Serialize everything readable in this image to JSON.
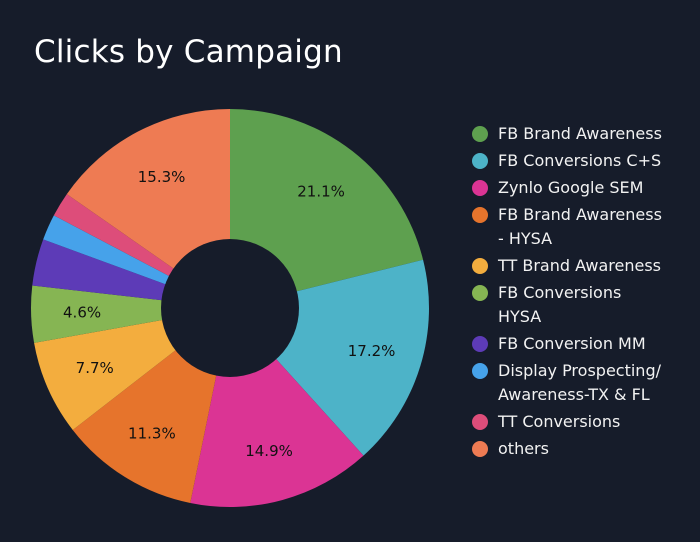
{
  "chart_data": {
    "type": "pie",
    "title": "Clicks by Campaign",
    "legend_position": "right",
    "donut": true,
    "categories": [
      "FB Brand Awareness",
      "FB Conversions C+S",
      "Zynlo Google SEM",
      "FB Brand Awareness - HYSA",
      "TT Brand Awareness",
      "FB Conversions HYSA",
      "FB Conversion MM",
      "Display Prospecting/ Awareness-TX & FL",
      "TT Conversions",
      "others"
    ],
    "legend_lines": [
      [
        "FB Brand Awareness"
      ],
      [
        "FB Conversions C+S"
      ],
      [
        "Zynlo Google SEM"
      ],
      [
        "FB Brand Awareness",
        "- HYSA"
      ],
      [
        "TT Brand Awareness"
      ],
      [
        "FB Conversions",
        "HYSA"
      ],
      [
        "FB Conversion MM"
      ],
      [
        "Display Prospecting/",
        "Awareness-TX & FL"
      ],
      [
        "TT Conversions"
      ],
      [
        "others"
      ]
    ],
    "values": [
      21.1,
      17.2,
      14.9,
      11.3,
      7.7,
      4.6,
      3.8,
      2.1,
      2.0,
      15.3
    ],
    "data_labels": [
      "21.1%",
      "17.2%",
      "14.9%",
      "11.3%",
      "7.7%",
      "4.6%",
      "",
      "",
      "",
      "15.3%"
    ],
    "colors": [
      "#5ea04f",
      "#4db3c8",
      "#db3494",
      "#e6742c",
      "#f3ad3e",
      "#86b553",
      "#5d3bb7",
      "#46a2ea",
      "#dd4d7a",
      "#ee7b53"
    ]
  }
}
